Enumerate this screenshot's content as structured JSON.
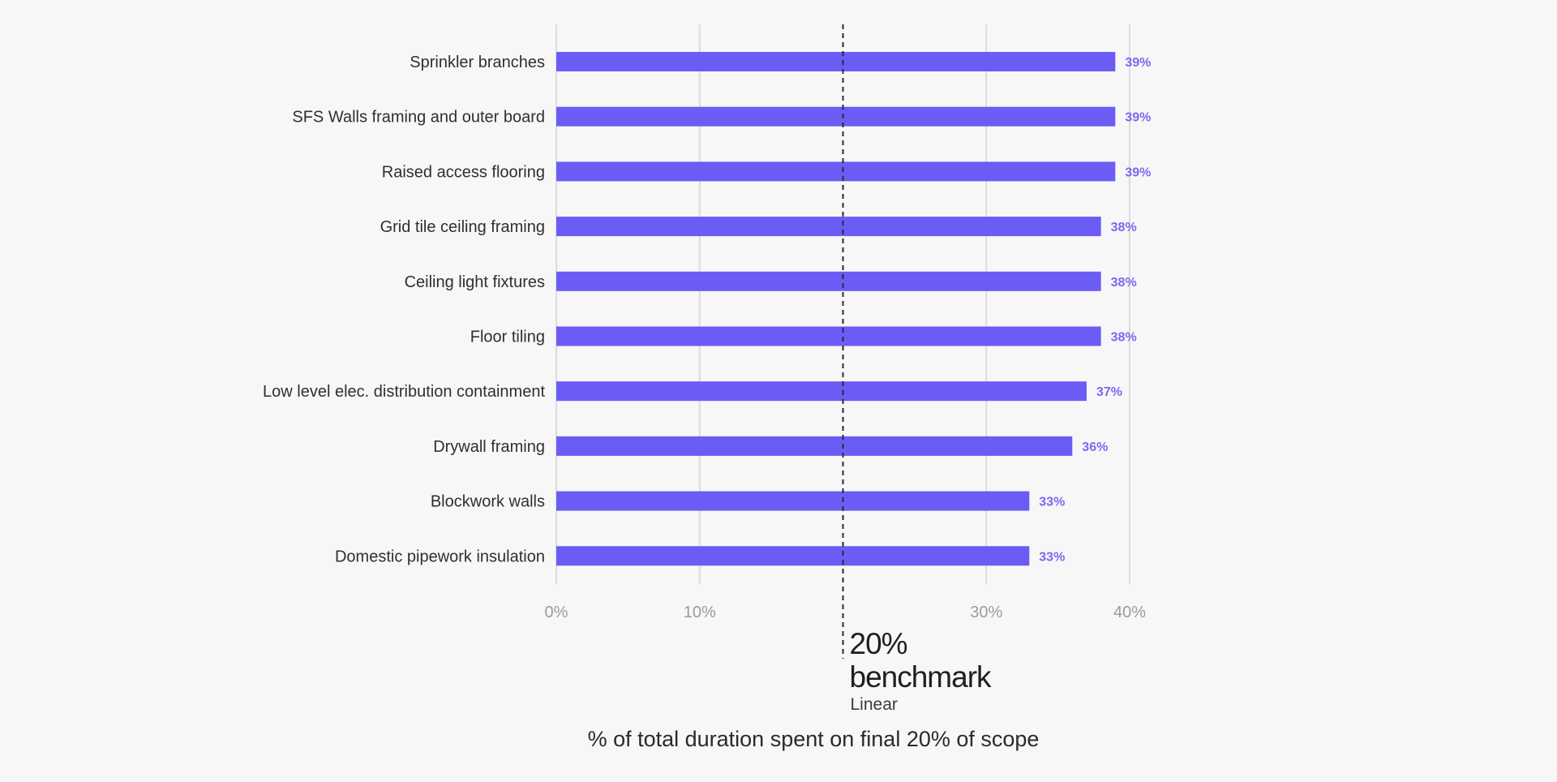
{
  "chart_data": {
    "type": "bar",
    "orientation": "horizontal",
    "categories": [
      "Sprinkler branches",
      "SFS Walls framing and outer board",
      "Raised access flooring",
      "Grid tile ceiling framing",
      "Ceiling light fixtures",
      "Floor tiling",
      "Low level elec. distribution containment",
      "Drywall framing",
      "Blockwork walls",
      "Domestic pipework insulation"
    ],
    "values": [
      39,
      39,
      39,
      38,
      38,
      38,
      37,
      36,
      33,
      33
    ],
    "value_labels": [
      "39%",
      "39%",
      "39%",
      "38%",
      "38%",
      "38%",
      "37%",
      "36%",
      "33%",
      "33%"
    ],
    "xlim": [
      0,
      40
    ],
    "xticks": [
      0,
      10,
      30,
      40
    ],
    "xtick_labels": [
      "0%",
      "10%",
      "30%",
      "40%"
    ],
    "xlabel": "% of total duration spent on final 20% of scope",
    "grid": true,
    "benchmark": {
      "value": 20,
      "value_label": "20%",
      "name": "benchmark",
      "sublabel": "Linear"
    },
    "colors": {
      "bar": "#6b5cf6",
      "value_label": "#7b69ee",
      "grid": "#dcdcdf",
      "background": "#f7f7f8"
    }
  }
}
